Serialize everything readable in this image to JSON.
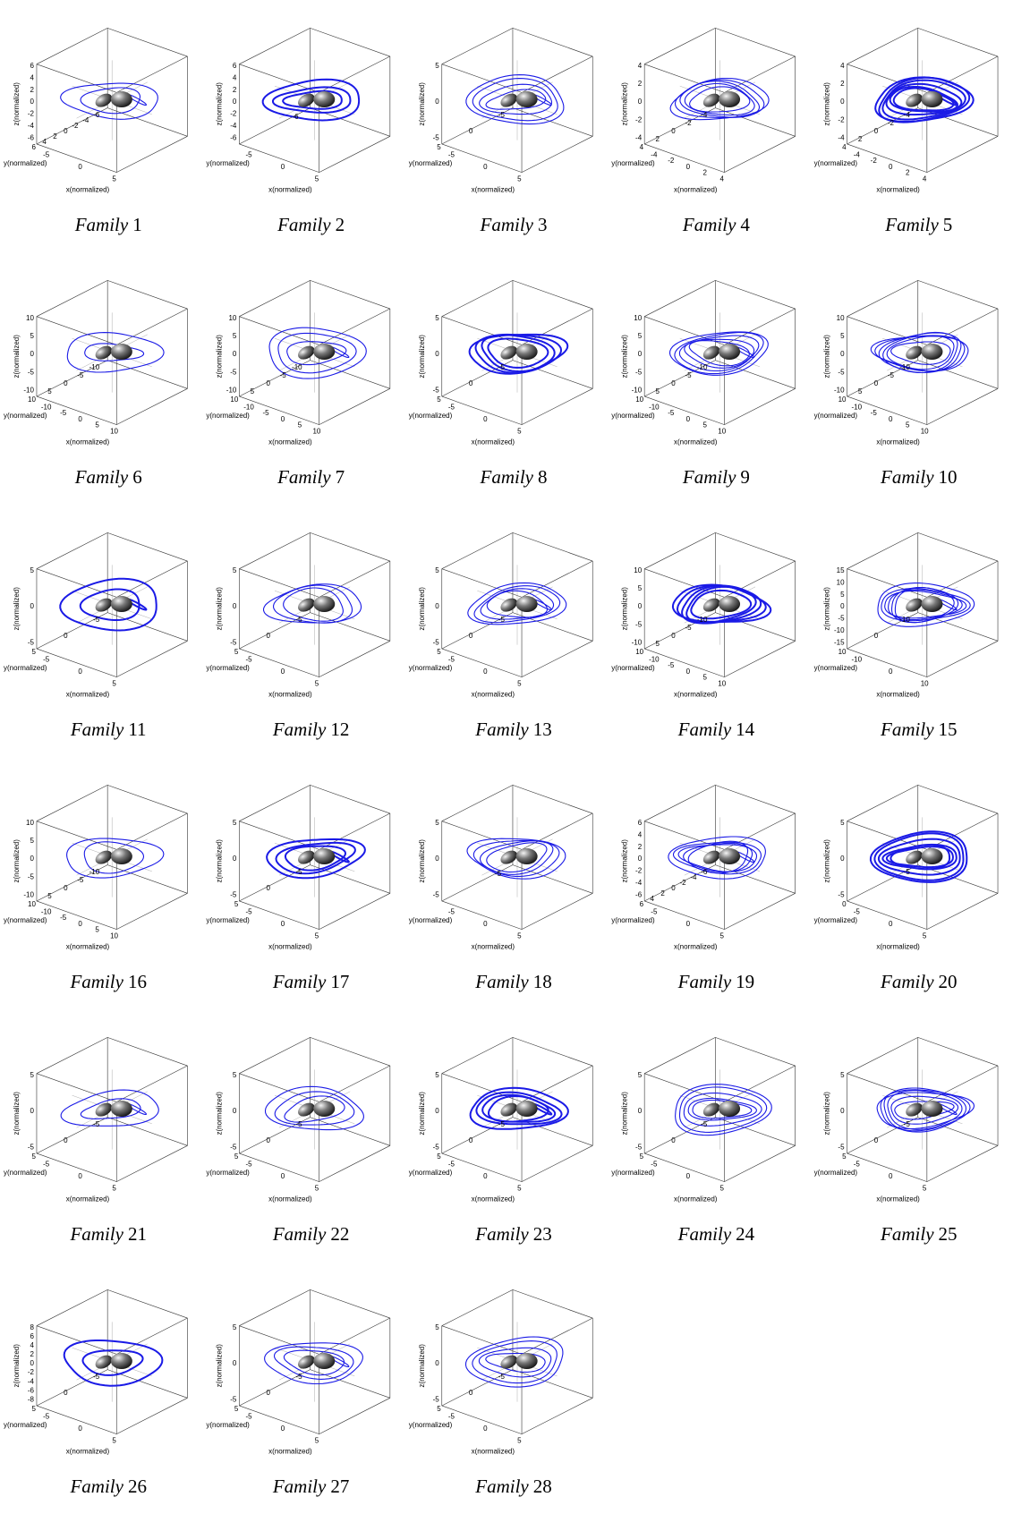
{
  "axis_labels": {
    "x": "x(normalized)",
    "y": "y(normalized)",
    "z": "z(normalized)"
  },
  "panels": [
    {
      "family": "Family",
      "number": 1,
      "zticks": [
        6,
        4,
        2,
        0,
        -2,
        -4,
        -6
      ],
      "yticks": [
        6,
        4,
        2,
        0,
        -2,
        -4,
        -6
      ],
      "xticks": [
        -5,
        0,
        5
      ]
    },
    {
      "family": "Family",
      "number": 2,
      "zticks": [
        6,
        4,
        2,
        0,
        -2,
        -4,
        -6
      ],
      "yticks": [
        -6
      ],
      "xticks": [
        -5,
        0,
        5
      ]
    },
    {
      "family": "Family",
      "number": 3,
      "zticks": [
        5,
        0,
        -5
      ],
      "yticks": [
        5,
        0,
        -5
      ],
      "xticks": [
        -5,
        0,
        5
      ]
    },
    {
      "family": "Family",
      "number": 4,
      "zticks": [
        4,
        2,
        0,
        -2,
        -4
      ],
      "yticks": [
        4,
        2,
        0,
        -2,
        -4
      ],
      "xticks": [
        -4,
        -2,
        0,
        2,
        4
      ]
    },
    {
      "family": "Family",
      "number": 5,
      "zticks": [
        4,
        2,
        0,
        -2,
        -4
      ],
      "yticks": [
        4,
        2,
        0,
        -2,
        -4
      ],
      "xticks": [
        -4,
        -2,
        0,
        2,
        4
      ]
    },
    {
      "family": "Family",
      "number": 6,
      "zticks": [
        10,
        5,
        0,
        -5,
        -10
      ],
      "yticks": [
        10,
        5,
        0,
        -5,
        -10
      ],
      "xticks": [
        -10,
        -5,
        0,
        5,
        10
      ]
    },
    {
      "family": "Family",
      "number": 7,
      "zticks": [
        10,
        5,
        0,
        -5,
        -10
      ],
      "yticks": [
        10,
        5,
        0,
        -5,
        -10
      ],
      "xticks": [
        -10,
        -5,
        0,
        5,
        10
      ]
    },
    {
      "family": "Family",
      "number": 8,
      "zticks": [
        5,
        0,
        -5
      ],
      "yticks": [
        5,
        0,
        -5
      ],
      "xticks": [
        -5,
        0,
        5
      ]
    },
    {
      "family": "Family",
      "number": 9,
      "zticks": [
        10,
        5,
        0,
        -5,
        -10
      ],
      "yticks": [
        10,
        5,
        0,
        -5,
        -10
      ],
      "xticks": [
        -10,
        -5,
        0,
        5,
        10
      ]
    },
    {
      "family": "Family",
      "number": 10,
      "zticks": [
        10,
        5,
        0,
        -5,
        -10
      ],
      "yticks": [
        10,
        5,
        0,
        -5,
        -10
      ],
      "xticks": [
        -10,
        -5,
        0,
        5,
        10
      ]
    },
    {
      "family": "Family",
      "number": 11,
      "zticks": [
        5,
        0,
        -5
      ],
      "yticks": [
        5,
        0,
        -5
      ],
      "xticks": [
        -5,
        0,
        5
      ]
    },
    {
      "family": "Family",
      "number": 12,
      "zticks": [
        5,
        0,
        -5
      ],
      "yticks": [
        5,
        0,
        -5
      ],
      "xticks": [
        -5,
        0,
        5
      ]
    },
    {
      "family": "Family",
      "number": 13,
      "zticks": [
        5,
        0,
        -5
      ],
      "yticks": [
        5,
        0,
        -5
      ],
      "xticks": [
        -5,
        0,
        5
      ]
    },
    {
      "family": "Family",
      "number": 14,
      "zticks": [
        10,
        5,
        0,
        -5,
        -10
      ],
      "yticks": [
        10,
        5,
        0,
        -5,
        -10
      ],
      "xticks": [
        -10,
        -5,
        0,
        5,
        10
      ]
    },
    {
      "family": "Family",
      "number": 15,
      "zticks": [
        15,
        10,
        5,
        0,
        -5,
        -10,
        -15
      ],
      "yticks": [
        10,
        0,
        -10
      ],
      "xticks": [
        -10,
        0,
        10
      ]
    },
    {
      "family": "Family",
      "number": 16,
      "zticks": [
        10,
        5,
        0,
        -5,
        -10
      ],
      "yticks": [
        10,
        5,
        0,
        -5,
        -10
      ],
      "xticks": [
        -10,
        -5,
        0,
        5,
        10
      ]
    },
    {
      "family": "Family",
      "number": 17,
      "zticks": [
        5,
        0,
        -5
      ],
      "yticks": [
        5,
        0,
        -5
      ],
      "xticks": [
        -5,
        0,
        5
      ]
    },
    {
      "family": "Family",
      "number": 18,
      "zticks": [
        5,
        0,
        -5
      ],
      "yticks": [
        -5
      ],
      "xticks": [
        -5,
        0,
        5
      ]
    },
    {
      "family": "Family",
      "number": 19,
      "zticks": [
        6,
        4,
        2,
        0,
        -2,
        -4,
        -6
      ],
      "yticks": [
        6,
        4,
        2,
        0,
        -2,
        -4,
        -6
      ],
      "xticks": [
        -5,
        0,
        5
      ]
    },
    {
      "family": "Family",
      "number": 20,
      "zticks": [
        5,
        0,
        -5
      ],
      "yticks": [
        0,
        -5
      ],
      "xticks": [
        -5,
        0,
        5
      ]
    },
    {
      "family": "Family",
      "number": 21,
      "zticks": [
        5,
        0,
        -5
      ],
      "yticks": [
        5,
        0,
        -5
      ],
      "xticks": [
        -5,
        0,
        5
      ]
    },
    {
      "family": "Family",
      "number": 22,
      "zticks": [
        5,
        0,
        -5
      ],
      "yticks": [
        5,
        0,
        -5
      ],
      "xticks": [
        -5,
        0,
        5
      ]
    },
    {
      "family": "Family",
      "number": 23,
      "zticks": [
        5,
        0,
        -5
      ],
      "yticks": [
        5,
        0,
        -5
      ],
      "xticks": [
        -5,
        0,
        5
      ]
    },
    {
      "family": "Family",
      "number": 24,
      "zticks": [
        5,
        0,
        -5
      ],
      "yticks": [
        5,
        0,
        -5
      ],
      "xticks": [
        -5,
        0,
        5
      ]
    },
    {
      "family": "Family",
      "number": 25,
      "zticks": [
        5,
        0,
        -5
      ],
      "yticks": [
        5,
        0,
        -5
      ],
      "xticks": [
        -5,
        0,
        5
      ]
    },
    {
      "family": "Family",
      "number": 26,
      "zticks": [
        8,
        6,
        4,
        2,
        0,
        -2,
        -4,
        -6,
        -8
      ],
      "yticks": [
        5,
        0,
        -5
      ],
      "xticks": [
        -5,
        0,
        5
      ]
    },
    {
      "family": "Family",
      "number": 27,
      "zticks": [
        5,
        0,
        -5
      ],
      "yticks": [
        5,
        0,
        -5
      ],
      "xticks": [
        -5,
        0,
        5
      ]
    },
    {
      "family": "Family",
      "number": 28,
      "zticks": [
        5,
        0,
        -5
      ],
      "yticks": [
        5,
        0,
        -5
      ],
      "xticks": [
        -5,
        0,
        5
      ]
    }
  ]
}
